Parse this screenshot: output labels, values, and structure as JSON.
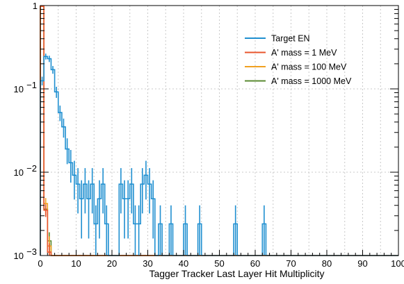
{
  "chart_data": {
    "type": "line",
    "xlabel": "Tagger Tracker Last Layer Hit Multiplicity",
    "ylabel": "",
    "xlim": [
      0,
      100
    ],
    "ylim": [
      0.001,
      1
    ],
    "y_scale": "log",
    "grid": true,
    "legend_placement": "top-right",
    "x_ticks": [
      "0",
      "10",
      "20",
      "30",
      "40",
      "50",
      "60",
      "70",
      "80",
      "90",
      "100"
    ],
    "y_ticks": [
      {
        "base": "1",
        "exp": ""
      },
      {
        "base": "10",
        "exp": "−1"
      },
      {
        "base": "10",
        "exp": "−2"
      },
      {
        "base": "10",
        "exp": "−3"
      }
    ],
    "series": [
      {
        "name": "Target EN",
        "color": "#1f8fd0",
        "points": [
          {
            "x": 0.5,
            "y": 0.125,
            "err": 0.015
          },
          {
            "x": 1.5,
            "y": 0.245,
            "err": 0.02
          },
          {
            "x": 2.5,
            "y": 0.23,
            "err": 0.02
          },
          {
            "x": 3.5,
            "y": 0.17,
            "err": 0.018
          },
          {
            "x": 4.5,
            "y": 0.092,
            "err": 0.014
          },
          {
            "x": 5.5,
            "y": 0.052,
            "err": 0.011
          },
          {
            "x": 6.5,
            "y": 0.035,
            "err": 0.009
          },
          {
            "x": 7.5,
            "y": 0.019,
            "err": 0.0065
          },
          {
            "x": 8.5,
            "y": 0.013,
            "err": 0.0055
          },
          {
            "x": 9.5,
            "y": 0.0092,
            "err": 0.0045
          },
          {
            "x": 10.5,
            "y": 0.0072,
            "err": 0.004
          },
          {
            "x": 11.5,
            "y": 0.0048,
            "err": 0.0032
          },
          {
            "x": 12.5,
            "y": 0.0072,
            "err": 0.004
          },
          {
            "x": 13.5,
            "y": 0.0048,
            "err": 0.0032
          },
          {
            "x": 14.5,
            "y": 0.0072,
            "err": 0.004
          },
          {
            "x": 15.5,
            "y": 0.0024,
            "err": 0.0016
          },
          {
            "x": 16.5,
            "y": 0.0048,
            "err": 0.0032
          },
          {
            "x": 17.5,
            "y": 0.0072,
            "err": 0.004
          },
          {
            "x": 18.5,
            "y": 0.0024,
            "err": 0.0016
          },
          {
            "x": 22.5,
            "y": 0.0072,
            "err": 0.004
          },
          {
            "x": 23.5,
            "y": 0.0048,
            "err": 0.0032
          },
          {
            "x": 24.5,
            "y": 0.0048,
            "err": 0.0032
          },
          {
            "x": 25.5,
            "y": 0.0072,
            "err": 0.004
          },
          {
            "x": 26.5,
            "y": 0.0024,
            "err": 0.0016
          },
          {
            "x": 27.5,
            "y": 0.0024,
            "err": 0.0016
          },
          {
            "x": 28.5,
            "y": 0.0072,
            "err": 0.004
          },
          {
            "x": 29.5,
            "y": 0.0092,
            "err": 0.0045
          },
          {
            "x": 30.5,
            "y": 0.0072,
            "err": 0.004
          },
          {
            "x": 31.5,
            "y": 0.0048,
            "err": 0.0032
          },
          {
            "x": 33.5,
            "y": 0.0024,
            "err": 0.0016
          },
          {
            "x": 36.5,
            "y": 0.0024,
            "err": 0.0016
          },
          {
            "x": 40.5,
            "y": 0.0024,
            "err": 0.0016
          },
          {
            "x": 44.5,
            "y": 0.0024,
            "err": 0.0016
          },
          {
            "x": 54.5,
            "y": 0.0024,
            "err": 0.0016
          },
          {
            "x": 62.5,
            "y": 0.0024,
            "err": 0.0016
          }
        ]
      },
      {
        "name": "A' mass = 1 MeV",
        "color": "#e8542c",
        "points": [
          {
            "x": 0.5,
            "y": 0.98,
            "err": 0.01
          },
          {
            "x": 1.5,
            "y": 0.0035,
            "err": 0.0006
          },
          {
            "x": 2.5,
            "y": 0.0011,
            "err": 0.0003
          }
        ]
      },
      {
        "name": "A' mass = 100 MeV",
        "color": "#f0a020",
        "points": [
          {
            "x": 0.5,
            "y": 0.98,
            "err": 0.01
          },
          {
            "x": 1.5,
            "y": 0.0042,
            "err": 0.0007
          },
          {
            "x": 2.5,
            "y": 0.0013,
            "err": 0.0004
          }
        ]
      },
      {
        "name": "A' mass = 1000 MeV",
        "color": "#5a8a30",
        "points": [
          {
            "x": 0.5,
            "y": 0.98,
            "err": 0.01
          },
          {
            "x": 1.5,
            "y": 0.0036,
            "err": 0.0006
          },
          {
            "x": 2.5,
            "y": 0.0015,
            "err": 0.0004
          }
        ]
      }
    ]
  }
}
